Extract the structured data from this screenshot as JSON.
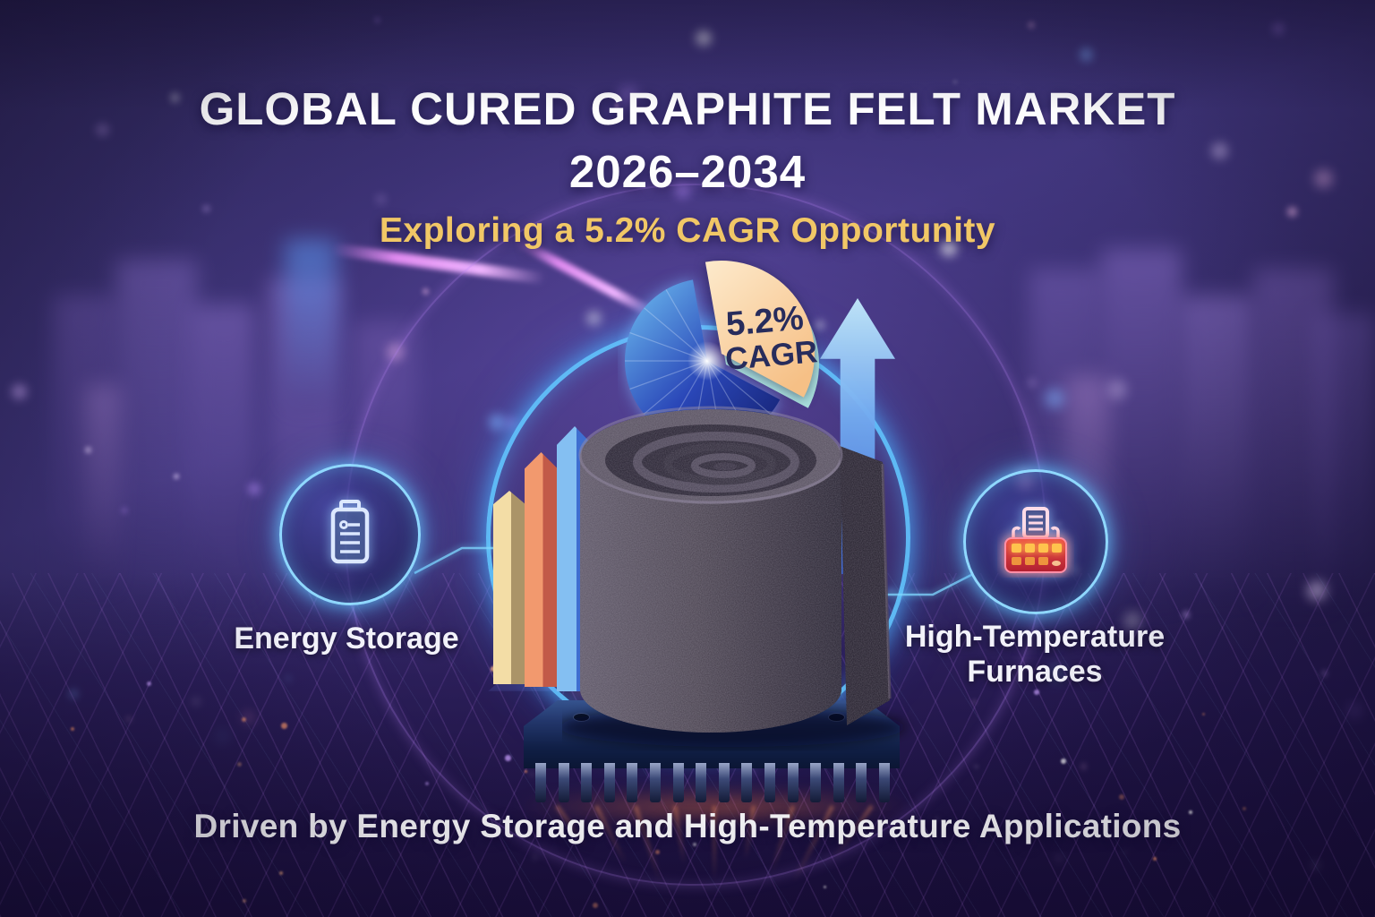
{
  "header": {
    "title_line1": "GLOBAL CURED GRAPHITE FELT MARKET",
    "title_line2": "2026–2034",
    "subtitle": "Exploring a 5.2% CAGR Opportunity"
  },
  "pie": {
    "value": "5.2%",
    "unit_label": "CAGR"
  },
  "features": {
    "left": {
      "icon": "battery-icon",
      "label": "Energy Storage"
    },
    "right": {
      "icon": "furnace-icon",
      "label_line1": "High-Temperature",
      "label_line2": "Furnaces"
    }
  },
  "footer": {
    "caption": "Driven by Energy Storage and High-Temperature Applications"
  },
  "colors": {
    "accent_gold": "#F1C766",
    "title_white": "#FDFDFE",
    "pie_slice_peach": "#F8D4A6",
    "pie_slice_depth_teal": "#AEE8E0",
    "pie_blue": "#2B53C0",
    "slice_text_navy": "#272C5C",
    "neon_ring_blue": "#61C4FF",
    "furnace_red": "#D93A3E",
    "furnace_window_yellow": "#FFC34D",
    "arrow_blue": "#74ACF0",
    "bar_gold": "#F3DDA6",
    "bar_orange": "#F2996E",
    "bar_blue": "#84BFF2"
  },
  "chart_data": {
    "type": "pie",
    "title": "Exploring a 5.2% CAGR Opportunity",
    "period": "2026–2034",
    "legend_position": "none",
    "slices": [
      {
        "label": "5.2% CAGR",
        "value_pct": 35.6,
        "color": "#F8D4A6",
        "exploded": true
      },
      {
        "label": "",
        "value_pct": 64.4,
        "color": "#2B53C0",
        "exploded": false
      }
    ],
    "note": "Decorative exploded-slice pie; only the highlighted slice is labeled (5.2% CAGR), slice angle ~128 deg."
  }
}
